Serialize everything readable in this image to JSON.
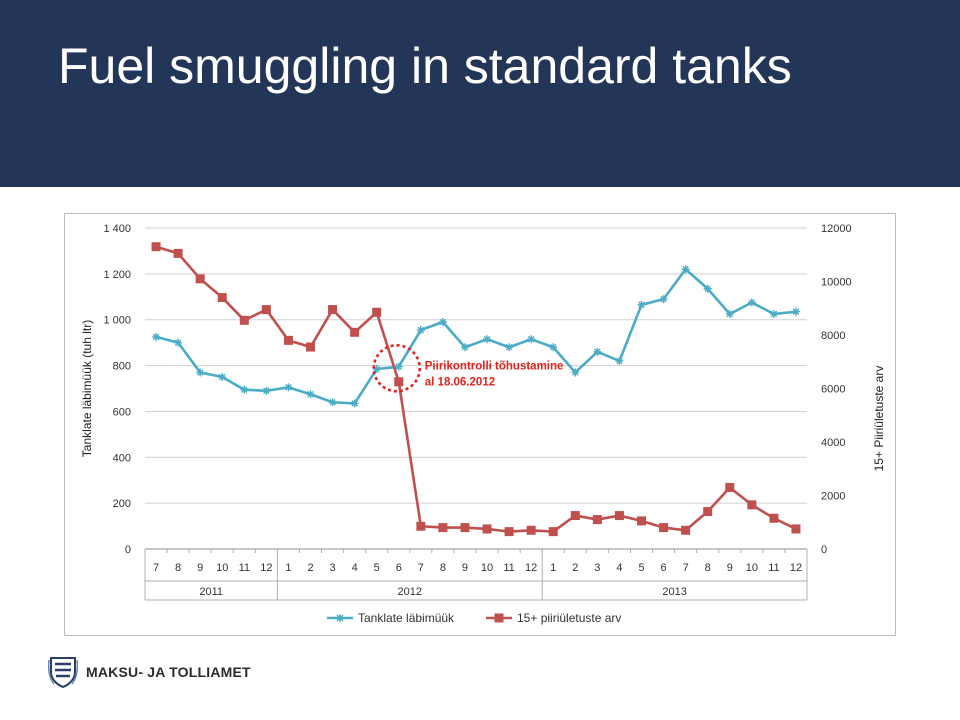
{
  "slide": {
    "title": "Fuel smuggling in standard tanks",
    "footer_org": "MAKSU- JA TOLLIAMET"
  },
  "colors": {
    "header_bg": "#243658",
    "series_sales": "#4bacc6",
    "series_crossings": "#c0504d",
    "annotation": "#e0231c"
  },
  "chart_data": {
    "type": "line",
    "x": [
      "7",
      "8",
      "9",
      "10",
      "11",
      "12",
      "1",
      "2",
      "3",
      "4",
      "5",
      "6",
      "7",
      "8",
      "9",
      "10",
      "11",
      "12",
      "1",
      "2",
      "3",
      "4",
      "5",
      "6",
      "7",
      "8",
      "9",
      "10",
      "11",
      "12"
    ],
    "year_groups": [
      {
        "label": "2011",
        "count": 6
      },
      {
        "label": "2012",
        "count": 12
      },
      {
        "label": "2013",
        "count": 12
      }
    ],
    "series": [
      {
        "name": "Tanklate läbimüük",
        "axis": "left",
        "values": [
          925,
          900,
          770,
          750,
          695,
          690,
          705,
          675,
          640,
          635,
          785,
          795,
          955,
          990,
          880,
          915,
          880,
          915,
          880,
          770,
          860,
          820,
          1065,
          1090,
          1220,
          1135,
          1025,
          1075,
          1025,
          1035
        ]
      },
      {
        "name": "15+ piiriületuste arv",
        "axis": "right",
        "values": [
          11300,
          11050,
          10100,
          9400,
          8550,
          8950,
          7800,
          7550,
          8950,
          8100,
          8850,
          6250,
          850,
          800,
          800,
          750,
          650,
          700,
          650,
          1250,
          1100,
          1250,
          1050,
          800,
          700,
          1400,
          2300,
          1650,
          1150,
          750
        ]
      }
    ],
    "ylabel": "Tanklate läbimüük (tuh ltr)",
    "y2label": "15+ Piiriületuste arv",
    "ylim": [
      0,
      1400
    ],
    "y2lim": [
      0,
      12000
    ],
    "yticks": [
      "0",
      "200",
      "400",
      "600",
      "800",
      "1 000",
      "1 200",
      "1 400"
    ],
    "y2ticks": [
      "0",
      "2000",
      "4000",
      "6000",
      "8000",
      "10000",
      "12000"
    ],
    "grid": true,
    "legend_position": "bottom",
    "annotation": {
      "line1": "Piirikontrolli tõhustamine",
      "line2": "al 18.06.2012",
      "x_index": 11
    }
  }
}
